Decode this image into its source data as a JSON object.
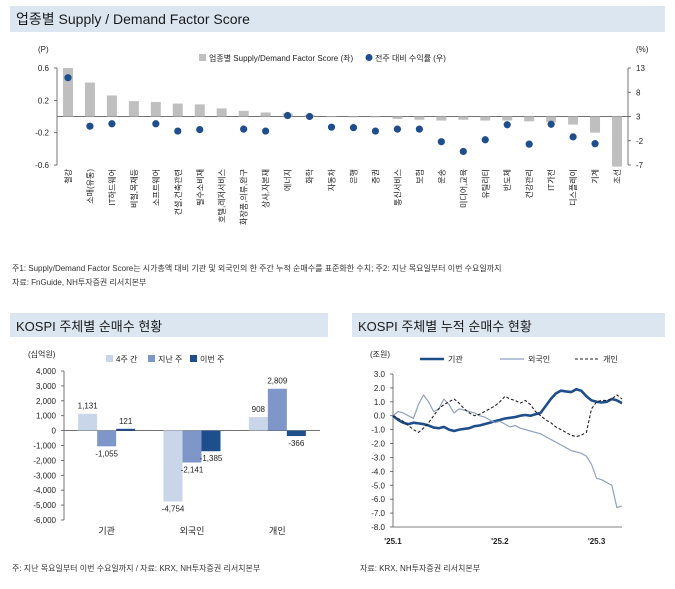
{
  "colors": {
    "panel_header": "#dce6f1",
    "score_bar": "#bfbfbf",
    "return_dot": "#1f4e8c",
    "four_week": "#c9d6ea",
    "last_week": "#7f96c9",
    "this_week": "#1f4e8c",
    "institution_line": "#1f4e8c",
    "foreign_line": "#8ea2c0",
    "individual_line": "#222222"
  },
  "panels": {
    "top": {
      "title": "업종별 Supply / Demand Factor Score",
      "note1": "주1: Supply/Demand Factor Score는 시가총액 대비 기관 및 외국인의 한 주간 누적 순매수를 표준화한 수치; 주2: 지난 목요일부터 이번 수요일까지",
      "note2": "자료: FnGuide, NH투자증권 리서치본부"
    },
    "bottom_left": {
      "title": "KOSPI 주체별 순매수 현황",
      "note": "주: 지난 목요일부터 이번 수요일까지 / 자료: KRX, NH투자증권 리서치본부"
    },
    "bottom_right": {
      "title": "KOSPI 주체별 누적 순매수 현황",
      "note": "자료: KRX, NH투자증권 리서치본부"
    }
  },
  "chart_data": [
    {
      "type": "bar",
      "name": "sector-score",
      "left_unit": "(P)",
      "right_unit": "(%)",
      "legend": [
        "업종별 Supply/Demand Factor Score (좌)",
        "전주 대비 수익률 (우)"
      ],
      "ylim_left": [
        -0.6,
        0.6
      ],
      "yticks_left": [
        "0.6",
        "0.2",
        "-0.2",
        "-0.6"
      ],
      "ylim_right": [
        -7,
        13
      ],
      "yticks_right": [
        "13",
        "8",
        "3",
        "-2",
        "-7"
      ],
      "categories": [
        "철강",
        "소매(유통)",
        "IT하드웨어",
        "비철,목재등",
        "소프트웨어",
        "건설,건축관련",
        "필수소비재",
        "호텔,레저서비스",
        "화장품,의류,완구",
        "상사,자본재",
        "에너지",
        "화학",
        "자동차",
        "은행",
        "증권",
        "통신서비스",
        "보험",
        "운송",
        "미디어,교육",
        "유틸리티",
        "반도체",
        "건강관리",
        "IT가전",
        "디스플레이",
        "기계",
        "조선"
      ],
      "series": [
        {
          "name": "업종별 Supply/Demand Factor Score (좌)",
          "axis": "left",
          "values": [
            0.6,
            0.42,
            0.26,
            0.19,
            0.18,
            0.16,
            0.15,
            0.1,
            0.07,
            0.05,
            0.04,
            0.02,
            0.0,
            -0.01,
            -0.01,
            -0.03,
            -0.04,
            -0.05,
            -0.04,
            -0.05,
            -0.05,
            -0.06,
            -0.07,
            -0.1,
            -0.2,
            -0.62
          ]
        },
        {
          "name": "전주 대비 수익률 (우)",
          "axis": "right",
          "values": [
            11,
            1,
            1.5,
            null,
            1.5,
            0,
            0.3,
            null,
            0.4,
            0,
            3.2,
            3,
            0.8,
            0.7,
            0,
            0.4,
            0.4,
            -2.2,
            -4.2,
            -1.8,
            1.3,
            -2.7,
            1.4,
            -1.2,
            -2.6,
            null
          ]
        }
      ]
    },
    {
      "type": "bar",
      "name": "net-buying",
      "unit": "(십억원)",
      "ylim": [
        -6000,
        4000
      ],
      "yticks": [
        "4,000",
        "3,000",
        "2,000",
        "1,000",
        "0",
        "-1,000",
        "-2,000",
        "-3,000",
        "-4,000",
        "-5,000",
        "-6,000"
      ],
      "categories": [
        "기관",
        "외국인",
        "개인"
      ],
      "series": [
        {
          "name": "4주 간",
          "values": [
            1131,
            -4754,
            908
          ],
          "labels": [
            "1,131",
            "-4,754",
            "908"
          ]
        },
        {
          "name": "지난 주",
          "values": [
            -1055,
            -2141,
            2809
          ],
          "labels": [
            "-1,055",
            "-2,141",
            "2,809"
          ]
        },
        {
          "name": "이번 주",
          "values": [
            121,
            -1385,
            -366
          ],
          "labels": [
            "121",
            "-1,385",
            "-366"
          ]
        }
      ]
    },
    {
      "type": "line",
      "name": "cumulative-net-buying",
      "unit": "(조원)",
      "ylim": [
        -8,
        3
      ],
      "yticks": [
        "3.0",
        "2.0",
        "1.0",
        "0.0",
        "-1.0",
        "-2.0",
        "-3.0",
        "-4.0",
        "-5.0",
        "-6.0",
        "-7.0",
        "-8.0"
      ],
      "xticks": [
        {
          "label": "'25.1",
          "x": 0
        },
        {
          "label": "'25.2",
          "x": 21
        },
        {
          "label": "'25.3",
          "x": 40
        }
      ],
      "xlim": [
        0,
        45
      ],
      "series": [
        {
          "name": "기관",
          "values": [
            0,
            -0.3,
            -0.5,
            -0.6,
            -0.5,
            -0.55,
            -0.6,
            -0.7,
            -0.85,
            -0.9,
            -0.8,
            -1.0,
            -1.1,
            -1.0,
            -0.95,
            -0.9,
            -0.75,
            -0.7,
            -0.6,
            -0.5,
            -0.4,
            -0.3,
            -0.2,
            -0.15,
            -0.1,
            0.0,
            0.05,
            0.0,
            0.1,
            0.2,
            0.7,
            1.2,
            1.6,
            1.8,
            1.75,
            1.7,
            1.9,
            1.8,
            1.4,
            1.1,
            1.0,
            0.95,
            1.0,
            1.2,
            1.1,
            0.9
          ]
        },
        {
          "name": "외국인",
          "values": [
            0,
            0.3,
            0.2,
            0.0,
            -0.2,
            0.8,
            1.5,
            1.0,
            0.3,
            0.5,
            1.2,
            0.8,
            0.2,
            0.5,
            0.4,
            0.3,
            0.2,
            0.0,
            -0.1,
            -0.3,
            -0.5,
            -0.4,
            -0.6,
            -0.8,
            -0.7,
            -0.9,
            -1.0,
            -1.1,
            -1.2,
            -1.3,
            -1.5,
            -1.7,
            -1.9,
            -2.1,
            -2.3,
            -2.5,
            -2.6,
            -2.7,
            -2.9,
            -3.5,
            -4.5,
            -4.6,
            -4.8,
            -5.0,
            -6.6,
            -6.5
          ]
        },
        {
          "name": "개인",
          "values": [
            0,
            -0.2,
            -0.4,
            -0.7,
            -1.0,
            -1.2,
            -0.9,
            -0.5,
            0.0,
            0.5,
            0.8,
            1.0,
            1.2,
            0.9,
            0.5,
            0.2,
            0.0,
            0.1,
            0.3,
            0.5,
            0.7,
            1.0,
            1.4,
            1.2,
            1.1,
            0.9,
            1.1,
            0.8,
            0.3,
            0.0,
            -0.3,
            -0.5,
            -0.8,
            -1.0,
            -1.2,
            -1.4,
            -1.5,
            -1.4,
            -1.2,
            0.5,
            1.0,
            1.1,
            1.1,
            1.2,
            1.5,
            1.2
          ]
        }
      ]
    }
  ]
}
